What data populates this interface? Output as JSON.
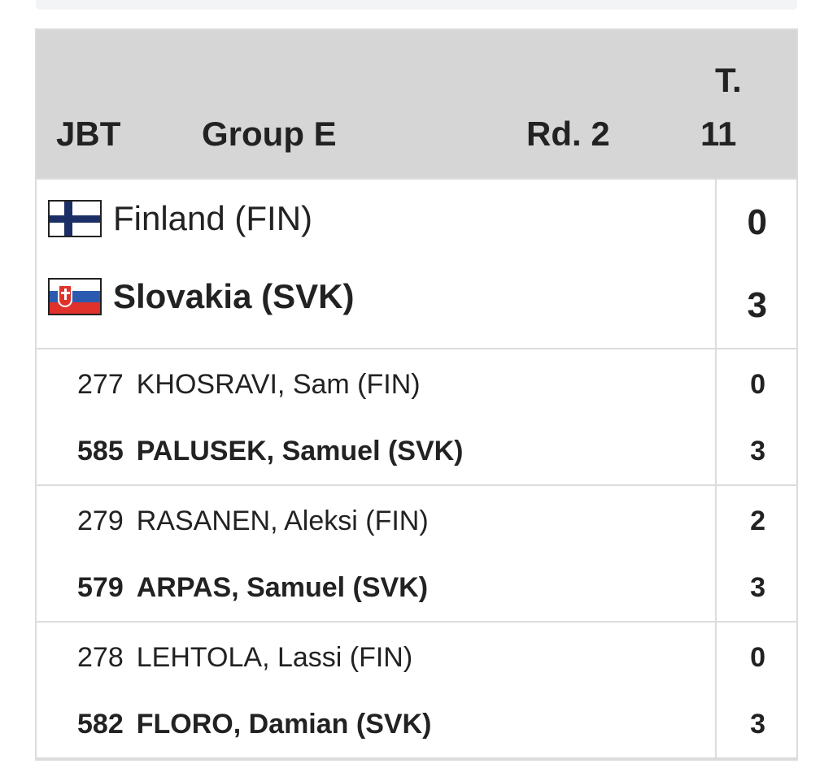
{
  "header": {
    "event": "JBT",
    "group": "Group E",
    "round": "Rd. 2",
    "table_label": "T.",
    "table_number": "11"
  },
  "match": {
    "team1": {
      "name": "Finland (FIN)",
      "score": "0",
      "flag": "finland-flag-icon"
    },
    "team2": {
      "name": "Slovakia (SVK)",
      "score": "3",
      "flag": "slovakia-flag-icon"
    }
  },
  "games": [
    {
      "player1": {
        "number": "277",
        "name": "KHOSRAVI, Sam (FIN)",
        "score": "0"
      },
      "player2": {
        "number": "585",
        "name": "PALUSEK, Samuel (SVK)",
        "score": "3"
      }
    },
    {
      "player1": {
        "number": "279",
        "name": "RASANEN, Aleksi (FIN)",
        "score": "2"
      },
      "player2": {
        "number": "579",
        "name": "ARPAS, Samuel (SVK)",
        "score": "3"
      }
    },
    {
      "player1": {
        "number": "278",
        "name": "LEHTOLA, Lassi (FIN)",
        "score": "0"
      },
      "player2": {
        "number": "582",
        "name": "FLORO, Damian (SVK)",
        "score": "3"
      }
    }
  ],
  "colors": {
    "header_bg": "#d6d6d6",
    "border": "#dcdcdc",
    "text": "#222222"
  }
}
